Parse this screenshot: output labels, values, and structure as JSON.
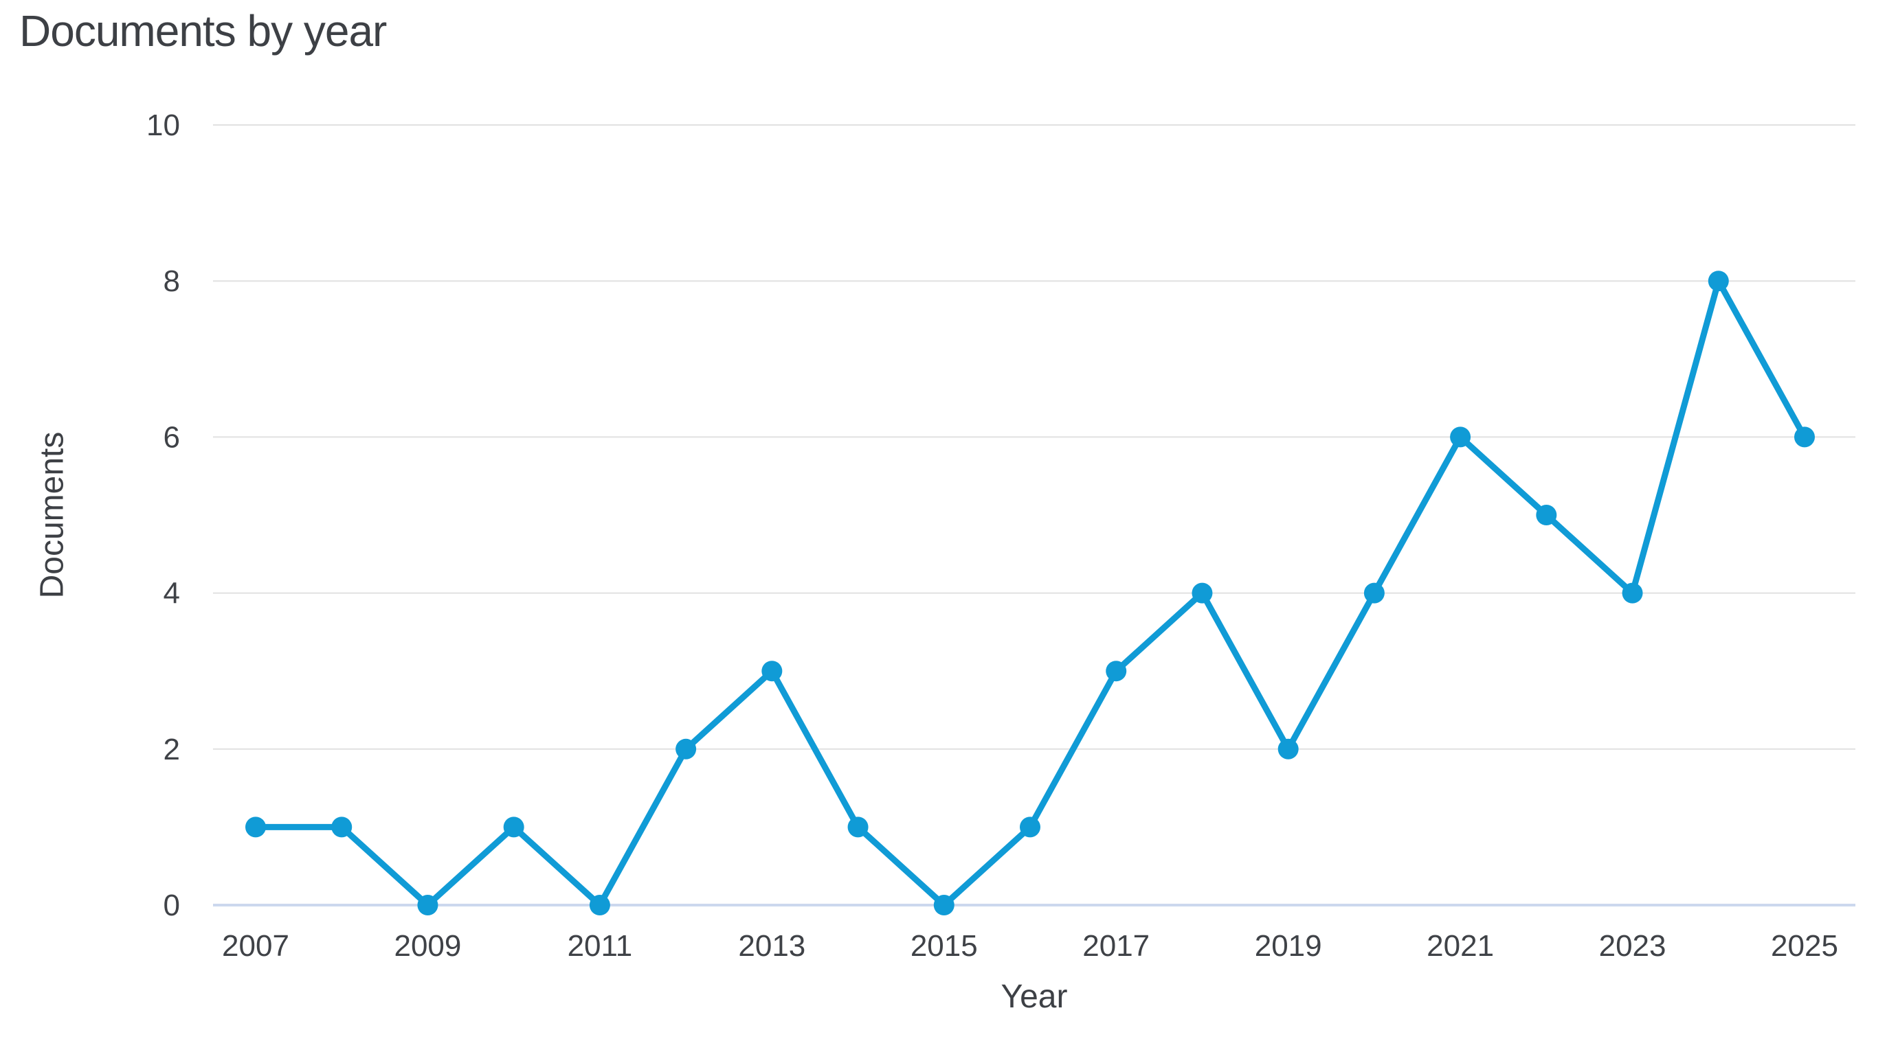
{
  "chart_data": {
    "type": "line",
    "title": "Documents by year",
    "xlabel": "Year",
    "ylabel": "Documents",
    "x": [
      2007,
      2008,
      2009,
      2010,
      2011,
      2012,
      2013,
      2014,
      2015,
      2016,
      2017,
      2018,
      2019,
      2020,
      2021,
      2022,
      2023,
      2024,
      2025
    ],
    "series": [
      {
        "name": "Documents",
        "values": [
          1,
          1,
          0,
          1,
          0,
          2,
          3,
          1,
          0,
          1,
          3,
          4,
          2,
          4,
          6,
          5,
          4,
          8,
          6
        ]
      }
    ],
    "ylim": [
      0,
      10
    ],
    "yticks": [
      "0",
      "2",
      "4",
      "6",
      "8",
      "10"
    ],
    "xticks": [
      "2007",
      "2009",
      "2011",
      "2013",
      "2015",
      "2017",
      "2019",
      "2021",
      "2023",
      "2025"
    ],
    "grid": "horizontal",
    "legend": "none",
    "colors": {
      "line": "#109bd6",
      "marker": "#109bd6",
      "gridline": "#e1e1e1",
      "zero_axis_line": "#ccd8ee",
      "text": "#3d4045",
      "background": "#ffffff"
    }
  }
}
